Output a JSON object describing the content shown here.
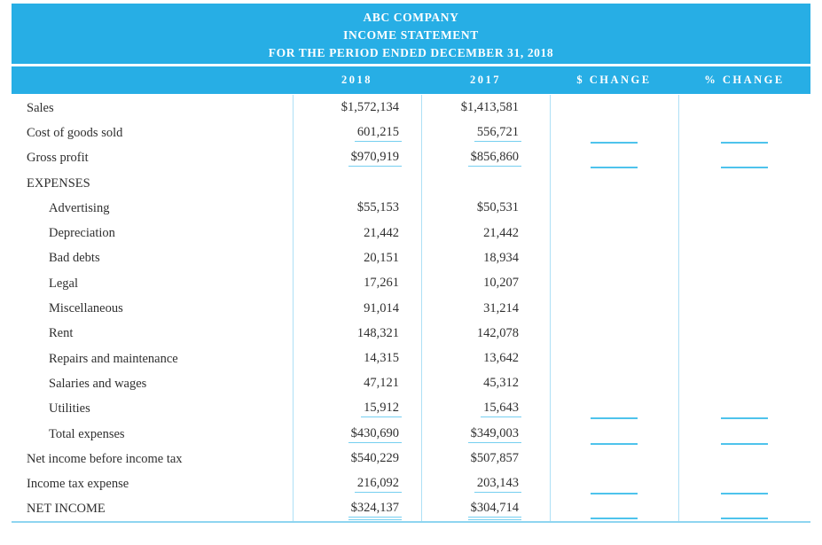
{
  "title_block": {
    "company": "ABC COMPANY",
    "statement": "INCOME STATEMENT",
    "period": "FOR THE PERIOD ENDED DECEMBER 31, 2018"
  },
  "columns": {
    "year_2018": "2018",
    "year_2017": "2017",
    "dollar_change": "$ CHANGE",
    "percent_change": "% CHANGE"
  },
  "colors": {
    "header_bg": "#27aee5",
    "text": "#2f2f2f",
    "underline": "#76cff0",
    "column_rule": "#aee0f6",
    "blank_line": "#4ec3ec",
    "bottom_border": "#8ed5f0"
  },
  "rows": [
    {
      "label": "Sales",
      "indent": false,
      "v2018": "$1,572,134",
      "v2017": "$1,413,581",
      "underline": "none",
      "change_blank": false
    },
    {
      "label": "Cost of goods sold",
      "indent": false,
      "v2018": "601,215",
      "v2017": "556,721",
      "underline": "single",
      "change_blank": true
    },
    {
      "label": "Gross profit",
      "indent": false,
      "v2018": "$970,919",
      "v2017": "$856,860",
      "underline": "single",
      "change_blank": true
    },
    {
      "label": "EXPENSES",
      "indent": false,
      "v2018": "",
      "v2017": "",
      "underline": "none",
      "change_blank": false
    },
    {
      "label": "Advertising",
      "indent": true,
      "v2018": "$55,153",
      "v2017": "$50,531",
      "underline": "none",
      "change_blank": false
    },
    {
      "label": "Depreciation",
      "indent": true,
      "v2018": "21,442",
      "v2017": "21,442",
      "underline": "none",
      "change_blank": false
    },
    {
      "label": "Bad debts",
      "indent": true,
      "v2018": "20,151",
      "v2017": "18,934",
      "underline": "none",
      "change_blank": false
    },
    {
      "label": "Legal",
      "indent": true,
      "v2018": "17,261",
      "v2017": "10,207",
      "underline": "none",
      "change_blank": false
    },
    {
      "label": "Miscellaneous",
      "indent": true,
      "v2018": "91,014",
      "v2017": "31,214",
      "underline": "none",
      "change_blank": false
    },
    {
      "label": "Rent",
      "indent": true,
      "v2018": "148,321",
      "v2017": "142,078",
      "underline": "none",
      "change_blank": false
    },
    {
      "label": "Repairs and maintenance",
      "indent": true,
      "v2018": "14,315",
      "v2017": "13,642",
      "underline": "none",
      "change_blank": false
    },
    {
      "label": "Salaries and wages",
      "indent": true,
      "v2018": "47,121",
      "v2017": "45,312",
      "underline": "none",
      "change_blank": false
    },
    {
      "label": "Utilities",
      "indent": true,
      "v2018": "15,912",
      "v2017": "15,643",
      "underline": "single",
      "change_blank": true
    },
    {
      "label": "Total expenses",
      "indent": true,
      "v2018": "$430,690",
      "v2017": "$349,003",
      "underline": "single",
      "change_blank": true
    },
    {
      "label": "Net income before income tax",
      "indent": false,
      "v2018": "$540,229",
      "v2017": "$507,857",
      "underline": "none",
      "change_blank": false
    },
    {
      "label": "Income tax expense",
      "indent": false,
      "v2018": "216,092",
      "v2017": "203,143",
      "underline": "single",
      "change_blank": true
    },
    {
      "label": "NET INCOME",
      "indent": false,
      "v2018": "$324,137",
      "v2017": "$304,714",
      "underline": "double",
      "change_blank": true
    }
  ]
}
